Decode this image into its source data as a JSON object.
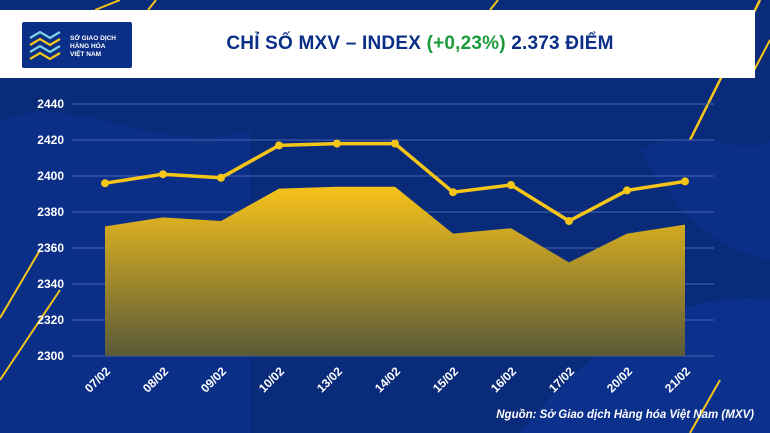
{
  "header": {
    "logo_lines": [
      "SỞ GIAO DỊCH",
      "HÀNG HÓA",
      "VIỆT NAM"
    ],
    "title_main": "CHỈ SỐ MXV – INDEX",
    "title_change": "(+0,23%)",
    "title_value": "2.373 ĐIỂM"
  },
  "source": "Nguồn: Sở Giao dịch Hàng hóa Việt Nam (MXV)",
  "colors": {
    "background": "#0a2a7a",
    "line": "#f5c518",
    "area_top": "#f7c21a",
    "area_bottom": "#5a5a3a",
    "title": "#0b2f86",
    "change": "#1d9a3c"
  },
  "chart_data": {
    "type": "line",
    "categories": [
      "07/02",
      "08/02",
      "09/02",
      "10/02",
      "13/02",
      "14/02",
      "15/02",
      "16/02",
      "17/02",
      "20/02",
      "21/02"
    ],
    "series": [
      {
        "values": [
          2396,
          2401,
          2399,
          2417,
          2418,
          2418,
          2391,
          2395,
          2375,
          2392,
          2397
        ]
      },
      {
        "values": [
          2372,
          2377,
          2375,
          2393,
          2394,
          2394,
          2368,
          2371,
          2352,
          2368,
          2373
        ]
      }
    ],
    "ylim": [
      2300,
      2440
    ],
    "yticks": [
      "2440",
      "2420",
      "2400",
      "2380",
      "2360",
      "2340",
      "2320",
      "2300"
    ],
    "grid": true
  }
}
